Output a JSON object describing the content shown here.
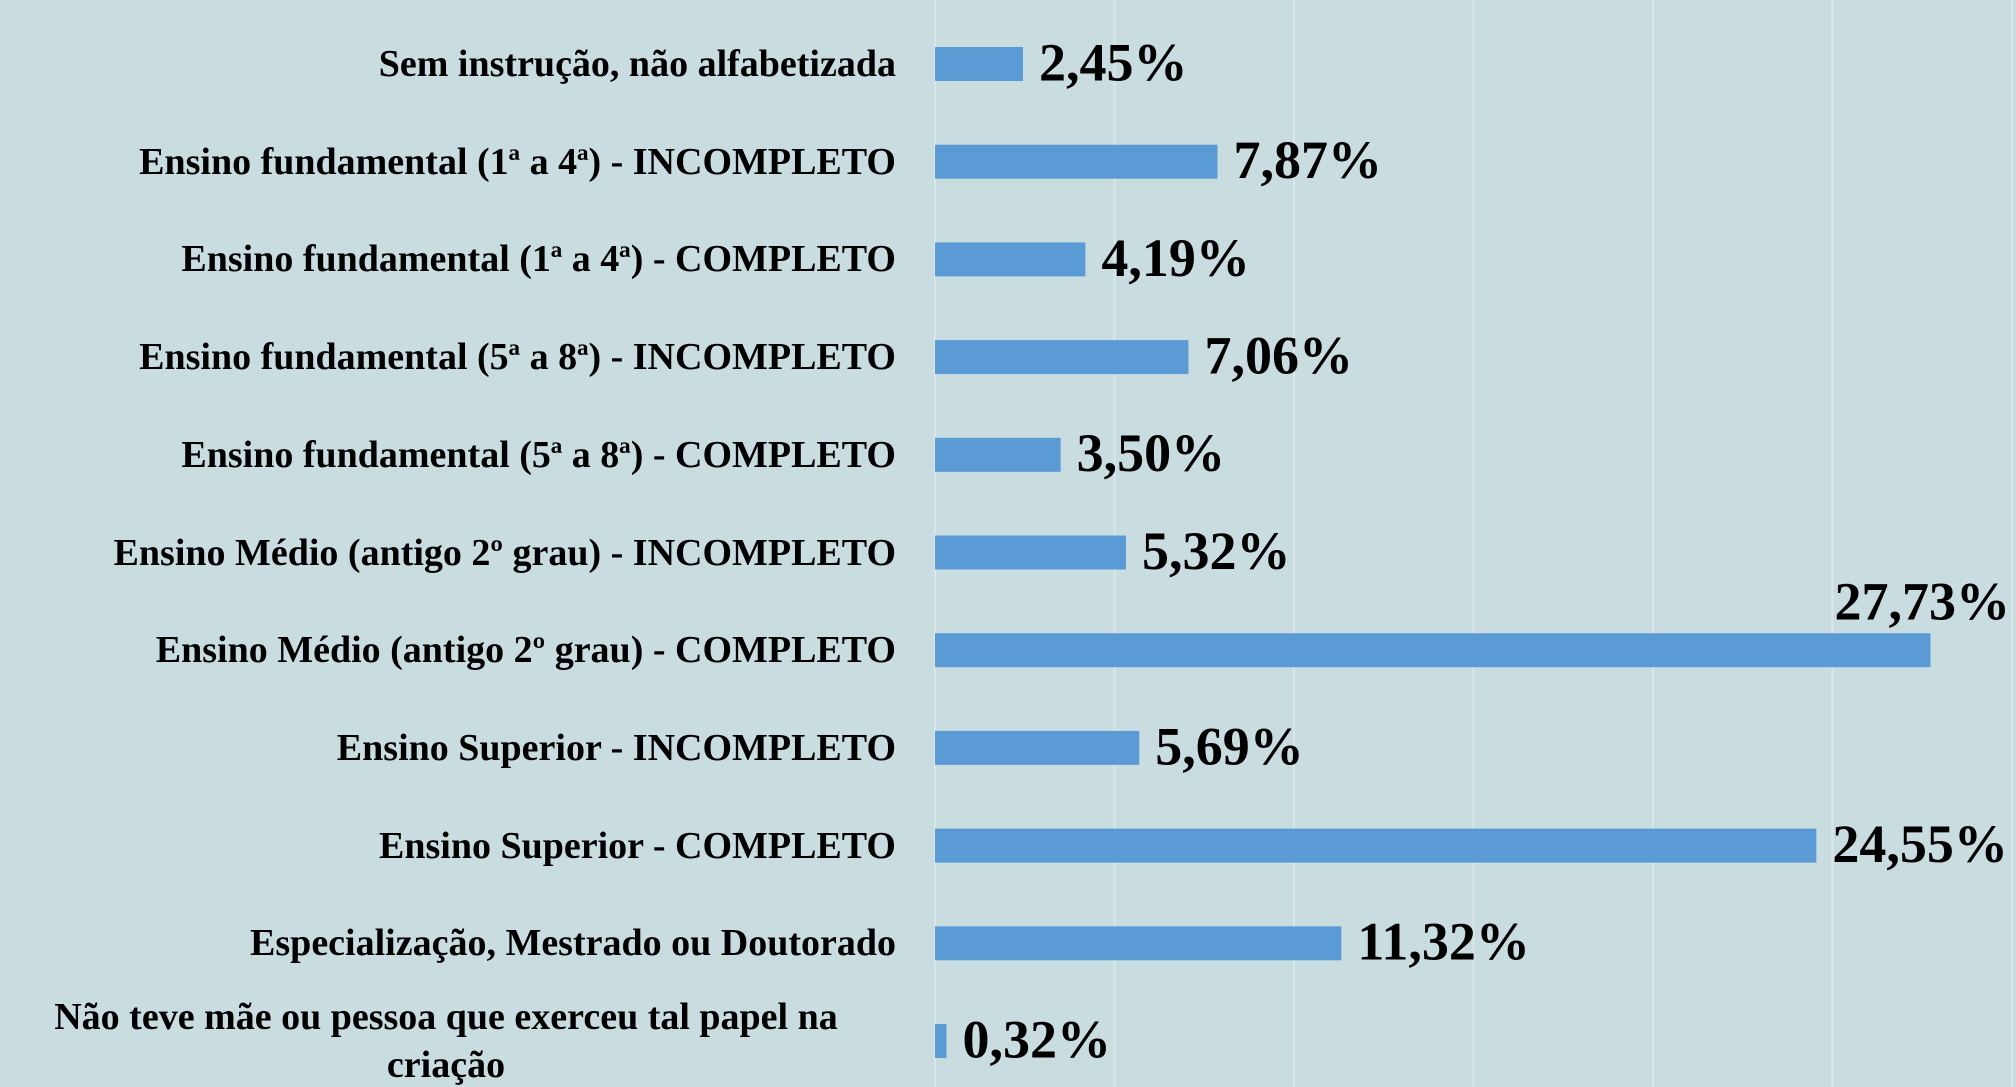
{
  "chart_data": {
    "type": "barh",
    "categories": [
      "Sem instrução, não alfabetizada",
      "Ensino fundamental (1ª a 4ª) - INCOMPLETO",
      "Ensino fundamental (1ª a 4ª) - COMPLETO",
      "Ensino fundamental (5ª a 8ª) - INCOMPLETO",
      "Ensino fundamental (5ª a 8ª) - COMPLETO",
      "Ensino Médio (antigo 2º grau) - INCOMPLETO",
      "Ensino Médio (antigo 2º grau) - COMPLETO",
      "Ensino Superior - INCOMPLETO",
      "Ensino Superior - COMPLETO",
      "Especialização, Mestrado ou Doutorado",
      "Não teve mãe ou pessoa que exerceu tal papel na criação"
    ],
    "values": [
      2.45,
      7.87,
      4.19,
      7.06,
      3.5,
      5.32,
      27.73,
      5.69,
      24.55,
      11.32,
      0.32
    ],
    "value_labels": [
      "2,45%",
      "7,87%",
      "4,19%",
      "7,06%",
      "3,50%",
      "5,32%",
      "27,73%",
      "5,69%",
      "24,55%",
      "11,32%",
      "0,32%"
    ],
    "color": "#5b9bd5",
    "xlim": [
      0,
      30
    ],
    "xticks": [
      0,
      5,
      10,
      15,
      20,
      25,
      30
    ],
    "grid": true
  }
}
